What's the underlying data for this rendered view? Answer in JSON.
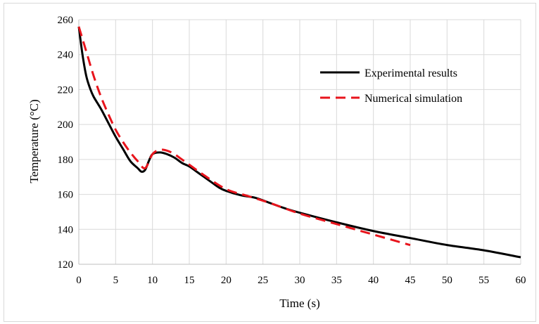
{
  "chart_data": {
    "type": "line",
    "title": "",
    "xlabel": "Time (s)",
    "ylabel": "Temperature (°C)",
    "xlim": [
      0,
      60
    ],
    "ylim": [
      120,
      260
    ],
    "xticks": [
      "0",
      "5",
      "10",
      "15",
      "20",
      "25",
      "30",
      "35",
      "40",
      "45",
      "50",
      "55",
      "60"
    ],
    "yticks": [
      "120",
      "140",
      "160",
      "180",
      "200",
      "220",
      "240",
      "260"
    ],
    "grid": true,
    "legend_position": "top-right",
    "series": [
      {
        "name": "Experimental results",
        "color": "#000000",
        "style": "solid",
        "points": [
          [
            0,
            256
          ],
          [
            0.5,
            240
          ],
          [
            1,
            228
          ],
          [
            1.5,
            221
          ],
          [
            2,
            216
          ],
          [
            3,
            209
          ],
          [
            4,
            201
          ],
          [
            5,
            193
          ],
          [
            6,
            186
          ],
          [
            7,
            179
          ],
          [
            8,
            175
          ],
          [
            8.5,
            173
          ],
          [
            9,
            174
          ],
          [
            9.5,
            179
          ],
          [
            10,
            183
          ],
          [
            11,
            184
          ],
          [
            12,
            183
          ],
          [
            13,
            181
          ],
          [
            14,
            178
          ],
          [
            15,
            176
          ],
          [
            16,
            173
          ],
          [
            17,
            170
          ],
          [
            18,
            167
          ],
          [
            19,
            164
          ],
          [
            20,
            162
          ],
          [
            22,
            159.5
          ],
          [
            24,
            158
          ],
          [
            26,
            155
          ],
          [
            28,
            152
          ],
          [
            30,
            149.5
          ],
          [
            35,
            144
          ],
          [
            40,
            139
          ],
          [
            45,
            135
          ],
          [
            50,
            131
          ],
          [
            55,
            128
          ],
          [
            60,
            124
          ]
        ]
      },
      {
        "name": "Numerical simulation",
        "color": "#e8141c",
        "style": "dashed",
        "points": [
          [
            0,
            256
          ],
          [
            1,
            242
          ],
          [
            2,
            228
          ],
          [
            3,
            216
          ],
          [
            4,
            206
          ],
          [
            5,
            197
          ],
          [
            6,
            190
          ],
          [
            7,
            184
          ],
          [
            8,
            179
          ],
          [
            9,
            175
          ],
          [
            10,
            183
          ],
          [
            11,
            185.5
          ],
          [
            12,
            185
          ],
          [
            13,
            183
          ],
          [
            14,
            180
          ],
          [
            15,
            177
          ],
          [
            17,
            171
          ],
          [
            20,
            163
          ],
          [
            23,
            159
          ],
          [
            26,
            155
          ],
          [
            30,
            149
          ],
          [
            35,
            143
          ],
          [
            40,
            137
          ],
          [
            45,
            131
          ]
        ]
      }
    ]
  }
}
